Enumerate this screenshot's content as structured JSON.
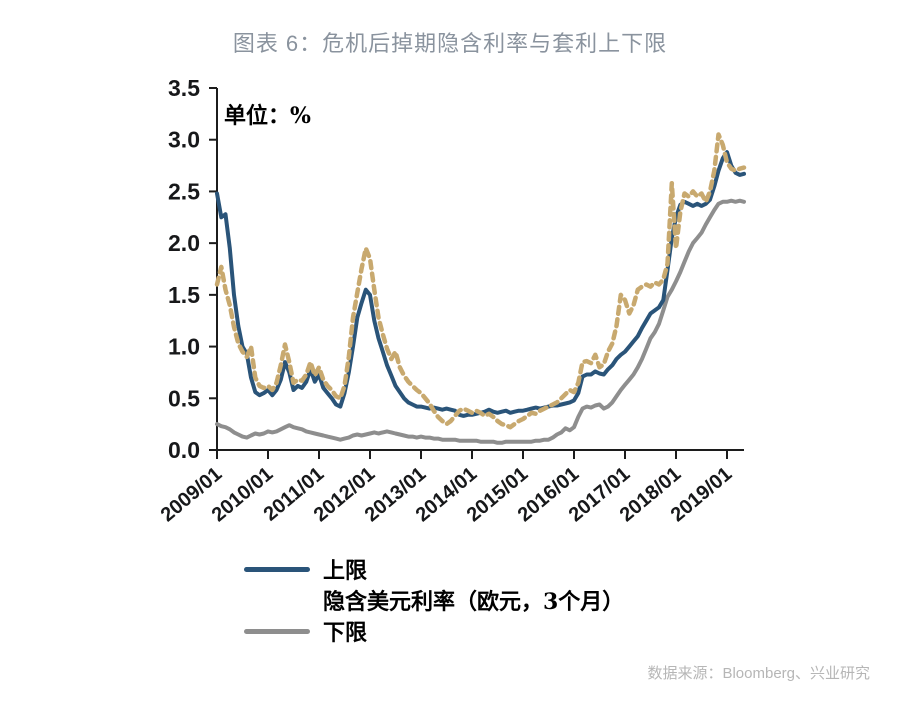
{
  "header": {
    "title": "图表 6：危机后掉期隐含利率与套利上下限"
  },
  "plot": {
    "unit_label": "单位：%"
  },
  "legend": {
    "items": [
      {
        "label": "上限",
        "color": "#2a5479",
        "style": "solid"
      },
      {
        "label": "隐含美元利率（欧元，3个月）",
        "color": "#c8a96f",
        "style": "dashed"
      },
      {
        "label": "下限",
        "color": "#8e8e8e",
        "style": "solid"
      }
    ]
  },
  "footer": {
    "source": "数据来源：Bloomberg、兴业研究"
  },
  "colors": {
    "upper": "#2a5479",
    "implied": "#c8a96f",
    "lower": "#8e8e8e",
    "axis": "#1c1c1c",
    "title": "#8a939e",
    "source_text": "#b6b6b6"
  },
  "chart_data": {
    "type": "line",
    "title": "图表 6：危机后掉期隐含利率与套利上下限",
    "unit": "%",
    "xlabel": "",
    "ylabel": "",
    "ylim": [
      0,
      3.5
    ],
    "grid": false,
    "legend_position": "bottom-left",
    "x_start": "2009/01",
    "x_end": "2019/05",
    "x_frequency": "monthly",
    "x_tick_labels": [
      "2009/01",
      "2010/01",
      "2011/01",
      "2012/01",
      "2013/01",
      "2014/01",
      "2015/01",
      "2016/01",
      "2017/01",
      "2018/01",
      "2019/01"
    ],
    "y_tick_labels": [
      "0.0",
      "0.5",
      "1.0",
      "1.5",
      "2.0",
      "2.5",
      "3.0",
      "3.5"
    ],
    "series": [
      {
        "name": "上限",
        "color": "#2a5479",
        "style": "solid",
        "values": [
          2.48,
          2.25,
          2.28,
          1.95,
          1.5,
          1.2,
          1.0,
          0.93,
          0.7,
          0.56,
          0.53,
          0.55,
          0.58,
          0.53,
          0.58,
          0.68,
          0.85,
          0.75,
          0.58,
          0.62,
          0.6,
          0.66,
          0.78,
          0.66,
          0.73,
          0.6,
          0.55,
          0.5,
          0.44,
          0.42,
          0.55,
          0.75,
          1.0,
          1.28,
          1.42,
          1.55,
          1.5,
          1.25,
          1.08,
          0.95,
          0.82,
          0.72,
          0.62,
          0.56,
          0.5,
          0.46,
          0.44,
          0.42,
          0.42,
          0.41,
          0.4,
          0.41,
          0.4,
          0.39,
          0.4,
          0.39,
          0.38,
          0.34,
          0.33,
          0.34,
          0.34,
          0.35,
          0.36,
          0.37,
          0.39,
          0.37,
          0.36,
          0.37,
          0.38,
          0.36,
          0.37,
          0.38,
          0.38,
          0.39,
          0.4,
          0.41,
          0.4,
          0.41,
          0.42,
          0.43,
          0.43,
          0.44,
          0.45,
          0.46,
          0.48,
          0.55,
          0.71,
          0.73,
          0.73,
          0.76,
          0.74,
          0.73,
          0.78,
          0.82,
          0.88,
          0.92,
          0.95,
          1.0,
          1.05,
          1.1,
          1.18,
          1.25,
          1.32,
          1.35,
          1.38,
          1.45,
          1.74,
          2.05,
          2.25,
          2.37,
          2.4,
          2.38,
          2.36,
          2.38,
          2.36,
          2.38,
          2.42,
          2.55,
          2.7,
          2.82,
          2.88,
          2.75,
          2.68,
          2.66,
          2.67
        ]
      },
      {
        "name": "隐含美元利率（欧元，3个月）",
        "color": "#c8a96f",
        "style": "dashed",
        "values": [
          1.6,
          1.77,
          1.55,
          1.4,
          1.19,
          1.03,
          0.95,
          0.9,
          1.0,
          0.7,
          0.62,
          0.6,
          0.62,
          0.58,
          0.65,
          0.82,
          1.02,
          0.85,
          0.65,
          0.68,
          0.67,
          0.73,
          0.85,
          0.72,
          0.8,
          0.68,
          0.62,
          0.58,
          0.52,
          0.5,
          0.62,
          0.9,
          1.28,
          1.52,
          1.75,
          1.95,
          1.85,
          1.55,
          1.28,
          1.12,
          0.98,
          0.88,
          0.95,
          0.8,
          0.72,
          0.66,
          0.62,
          0.58,
          0.55,
          0.5,
          0.45,
          0.38,
          0.32,
          0.28,
          0.25,
          0.28,
          0.33,
          0.38,
          0.4,
          0.38,
          0.36,
          0.38,
          0.36,
          0.33,
          0.35,
          0.32,
          0.28,
          0.25,
          0.24,
          0.22,
          0.25,
          0.28,
          0.3,
          0.33,
          0.36,
          0.35,
          0.38,
          0.4,
          0.42,
          0.44,
          0.46,
          0.5,
          0.54,
          0.58,
          0.56,
          0.65,
          0.85,
          0.86,
          0.84,
          0.92,
          0.8,
          0.83,
          0.95,
          1.03,
          1.2,
          1.5,
          1.45,
          1.32,
          1.4,
          1.55,
          1.58,
          1.6,
          1.58,
          1.62,
          1.6,
          1.65,
          1.8,
          2.58,
          1.95,
          2.3,
          2.48,
          2.45,
          2.5,
          2.45,
          2.48,
          2.4,
          2.5,
          2.7,
          3.05,
          2.95,
          2.78,
          2.72,
          2.7,
          2.72,
          2.73
        ]
      },
      {
        "name": "下限",
        "color": "#8e8e8e",
        "style": "solid",
        "values": [
          0.25,
          0.23,
          0.22,
          0.2,
          0.17,
          0.15,
          0.13,
          0.12,
          0.14,
          0.16,
          0.15,
          0.16,
          0.18,
          0.17,
          0.18,
          0.2,
          0.22,
          0.24,
          0.22,
          0.21,
          0.2,
          0.18,
          0.17,
          0.16,
          0.15,
          0.14,
          0.13,
          0.12,
          0.11,
          0.1,
          0.11,
          0.12,
          0.14,
          0.15,
          0.14,
          0.15,
          0.16,
          0.17,
          0.16,
          0.17,
          0.18,
          0.17,
          0.16,
          0.15,
          0.14,
          0.13,
          0.13,
          0.12,
          0.13,
          0.12,
          0.12,
          0.11,
          0.11,
          0.1,
          0.1,
          0.1,
          0.1,
          0.09,
          0.09,
          0.09,
          0.09,
          0.09,
          0.08,
          0.08,
          0.08,
          0.08,
          0.07,
          0.07,
          0.08,
          0.08,
          0.08,
          0.08,
          0.08,
          0.08,
          0.08,
          0.09,
          0.09,
          0.1,
          0.1,
          0.12,
          0.15,
          0.17,
          0.21,
          0.19,
          0.22,
          0.32,
          0.4,
          0.42,
          0.41,
          0.43,
          0.44,
          0.4,
          0.42,
          0.46,
          0.52,
          0.58,
          0.63,
          0.68,
          0.73,
          0.8,
          0.88,
          0.98,
          1.08,
          1.14,
          1.22,
          1.35,
          1.48,
          1.55,
          1.63,
          1.72,
          1.82,
          1.92,
          2.0,
          2.05,
          2.1,
          2.18,
          2.25,
          2.32,
          2.38,
          2.4,
          2.4,
          2.41,
          2.4,
          2.41,
          2.4
        ]
      }
    ]
  }
}
